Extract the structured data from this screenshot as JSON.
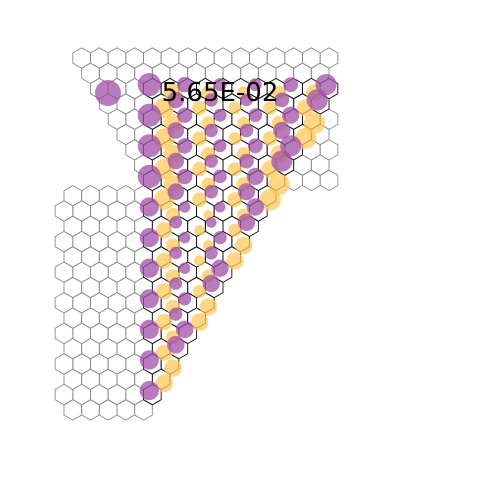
{
  "figure": {
    "value_text": "5.65E-02",
    "colors": {
      "background": "#ffffff",
      "lattice_outer": "#8c8c8c",
      "lattice_inner": "#111111",
      "positive": "#ffc85a",
      "negative": "#a050a8"
    }
  }
}
